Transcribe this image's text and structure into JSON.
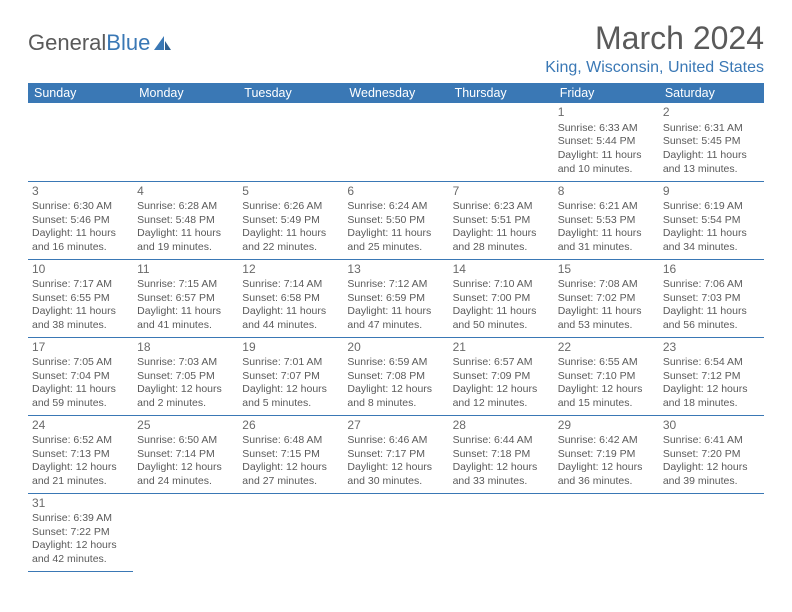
{
  "logo": {
    "text1": "General",
    "text2": "Blue"
  },
  "title": "March 2024",
  "location": "King, Wisconsin, United States",
  "day_headers": [
    "Sunday",
    "Monday",
    "Tuesday",
    "Wednesday",
    "Thursday",
    "Friday",
    "Saturday"
  ],
  "colors": {
    "header_bg": "#3a78b5",
    "header_text": "#ffffff",
    "border": "#3a78b5",
    "text": "#5a5a5a",
    "accent": "#3a78b5"
  },
  "weeks": [
    [
      null,
      null,
      null,
      null,
      null,
      {
        "n": "1",
        "sunrise": "Sunrise: 6:33 AM",
        "sunset": "Sunset: 5:44 PM",
        "daylight": "Daylight: 11 hours and 10 minutes."
      },
      {
        "n": "2",
        "sunrise": "Sunrise: 6:31 AM",
        "sunset": "Sunset: 5:45 PM",
        "daylight": "Daylight: 11 hours and 13 minutes."
      }
    ],
    [
      {
        "n": "3",
        "sunrise": "Sunrise: 6:30 AM",
        "sunset": "Sunset: 5:46 PM",
        "daylight": "Daylight: 11 hours and 16 minutes."
      },
      {
        "n": "4",
        "sunrise": "Sunrise: 6:28 AM",
        "sunset": "Sunset: 5:48 PM",
        "daylight": "Daylight: 11 hours and 19 minutes."
      },
      {
        "n": "5",
        "sunrise": "Sunrise: 6:26 AM",
        "sunset": "Sunset: 5:49 PM",
        "daylight": "Daylight: 11 hours and 22 minutes."
      },
      {
        "n": "6",
        "sunrise": "Sunrise: 6:24 AM",
        "sunset": "Sunset: 5:50 PM",
        "daylight": "Daylight: 11 hours and 25 minutes."
      },
      {
        "n": "7",
        "sunrise": "Sunrise: 6:23 AM",
        "sunset": "Sunset: 5:51 PM",
        "daylight": "Daylight: 11 hours and 28 minutes."
      },
      {
        "n": "8",
        "sunrise": "Sunrise: 6:21 AM",
        "sunset": "Sunset: 5:53 PM",
        "daylight": "Daylight: 11 hours and 31 minutes."
      },
      {
        "n": "9",
        "sunrise": "Sunrise: 6:19 AM",
        "sunset": "Sunset: 5:54 PM",
        "daylight": "Daylight: 11 hours and 34 minutes."
      }
    ],
    [
      {
        "n": "10",
        "sunrise": "Sunrise: 7:17 AM",
        "sunset": "Sunset: 6:55 PM",
        "daylight": "Daylight: 11 hours and 38 minutes."
      },
      {
        "n": "11",
        "sunrise": "Sunrise: 7:15 AM",
        "sunset": "Sunset: 6:57 PM",
        "daylight": "Daylight: 11 hours and 41 minutes."
      },
      {
        "n": "12",
        "sunrise": "Sunrise: 7:14 AM",
        "sunset": "Sunset: 6:58 PM",
        "daylight": "Daylight: 11 hours and 44 minutes."
      },
      {
        "n": "13",
        "sunrise": "Sunrise: 7:12 AM",
        "sunset": "Sunset: 6:59 PM",
        "daylight": "Daylight: 11 hours and 47 minutes."
      },
      {
        "n": "14",
        "sunrise": "Sunrise: 7:10 AM",
        "sunset": "Sunset: 7:00 PM",
        "daylight": "Daylight: 11 hours and 50 minutes."
      },
      {
        "n": "15",
        "sunrise": "Sunrise: 7:08 AM",
        "sunset": "Sunset: 7:02 PM",
        "daylight": "Daylight: 11 hours and 53 minutes."
      },
      {
        "n": "16",
        "sunrise": "Sunrise: 7:06 AM",
        "sunset": "Sunset: 7:03 PM",
        "daylight": "Daylight: 11 hours and 56 minutes."
      }
    ],
    [
      {
        "n": "17",
        "sunrise": "Sunrise: 7:05 AM",
        "sunset": "Sunset: 7:04 PM",
        "daylight": "Daylight: 11 hours and 59 minutes."
      },
      {
        "n": "18",
        "sunrise": "Sunrise: 7:03 AM",
        "sunset": "Sunset: 7:05 PM",
        "daylight": "Daylight: 12 hours and 2 minutes."
      },
      {
        "n": "19",
        "sunrise": "Sunrise: 7:01 AM",
        "sunset": "Sunset: 7:07 PM",
        "daylight": "Daylight: 12 hours and 5 minutes."
      },
      {
        "n": "20",
        "sunrise": "Sunrise: 6:59 AM",
        "sunset": "Sunset: 7:08 PM",
        "daylight": "Daylight: 12 hours and 8 minutes."
      },
      {
        "n": "21",
        "sunrise": "Sunrise: 6:57 AM",
        "sunset": "Sunset: 7:09 PM",
        "daylight": "Daylight: 12 hours and 12 minutes."
      },
      {
        "n": "22",
        "sunrise": "Sunrise: 6:55 AM",
        "sunset": "Sunset: 7:10 PM",
        "daylight": "Daylight: 12 hours and 15 minutes."
      },
      {
        "n": "23",
        "sunrise": "Sunrise: 6:54 AM",
        "sunset": "Sunset: 7:12 PM",
        "daylight": "Daylight: 12 hours and 18 minutes."
      }
    ],
    [
      {
        "n": "24",
        "sunrise": "Sunrise: 6:52 AM",
        "sunset": "Sunset: 7:13 PM",
        "daylight": "Daylight: 12 hours and 21 minutes."
      },
      {
        "n": "25",
        "sunrise": "Sunrise: 6:50 AM",
        "sunset": "Sunset: 7:14 PM",
        "daylight": "Daylight: 12 hours and 24 minutes."
      },
      {
        "n": "26",
        "sunrise": "Sunrise: 6:48 AM",
        "sunset": "Sunset: 7:15 PM",
        "daylight": "Daylight: 12 hours and 27 minutes."
      },
      {
        "n": "27",
        "sunrise": "Sunrise: 6:46 AM",
        "sunset": "Sunset: 7:17 PM",
        "daylight": "Daylight: 12 hours and 30 minutes."
      },
      {
        "n": "28",
        "sunrise": "Sunrise: 6:44 AM",
        "sunset": "Sunset: 7:18 PM",
        "daylight": "Daylight: 12 hours and 33 minutes."
      },
      {
        "n": "29",
        "sunrise": "Sunrise: 6:42 AM",
        "sunset": "Sunset: 7:19 PM",
        "daylight": "Daylight: 12 hours and 36 minutes."
      },
      {
        "n": "30",
        "sunrise": "Sunrise: 6:41 AM",
        "sunset": "Sunset: 7:20 PM",
        "daylight": "Daylight: 12 hours and 39 minutes."
      }
    ],
    [
      {
        "n": "31",
        "sunrise": "Sunrise: 6:39 AM",
        "sunset": "Sunset: 7:22 PM",
        "daylight": "Daylight: 12 hours and 42 minutes."
      },
      null,
      null,
      null,
      null,
      null,
      null
    ]
  ]
}
